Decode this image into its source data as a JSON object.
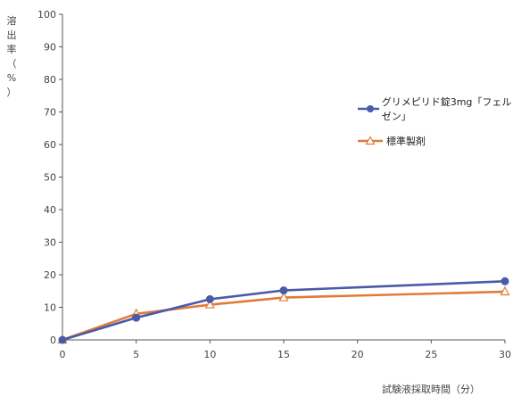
{
  "chart_data": {
    "type": "line",
    "ylabel_chars": [
      "溶",
      "出",
      "率",
      "（",
      "%",
      "）"
    ],
    "xlabel": "試験液採取時間（分）",
    "x": [
      0,
      5,
      10,
      15,
      30
    ],
    "xticks": [
      0,
      5,
      10,
      15,
      20,
      25,
      30
    ],
    "yticks": [
      0,
      10,
      20,
      30,
      40,
      50,
      60,
      70,
      80,
      90,
      100
    ],
    "xlim": [
      0,
      30
    ],
    "ylim": [
      0,
      100
    ],
    "grid": false,
    "legend_position": "right",
    "series": [
      {
        "name": "グリメピリド錠3mg「フェルゼン」",
        "values": [
          0,
          6.8,
          12.5,
          15.2,
          18.0
        ],
        "color": "#4a5aa8",
        "marker": "filled-circle"
      },
      {
        "name": "標準製剤",
        "values": [
          0,
          8.0,
          10.8,
          13.0,
          14.8
        ],
        "color": "#e07b3a",
        "marker": "open-triangle"
      }
    ]
  }
}
